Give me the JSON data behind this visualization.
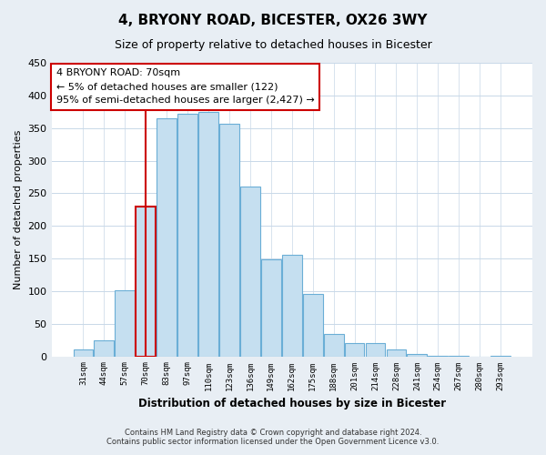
{
  "title": "4, BRYONY ROAD, BICESTER, OX26 3WY",
  "subtitle": "Size of property relative to detached houses in Bicester",
  "xlabel": "Distribution of detached houses by size in Bicester",
  "ylabel": "Number of detached properties",
  "footer_lines": [
    "Contains HM Land Registry data © Crown copyright and database right 2024.",
    "Contains public sector information licensed under the Open Government Licence v3.0."
  ],
  "bar_labels": [
    "31sqm",
    "44sqm",
    "57sqm",
    "70sqm",
    "83sqm",
    "97sqm",
    "110sqm",
    "123sqm",
    "136sqm",
    "149sqm",
    "162sqm",
    "175sqm",
    "188sqm",
    "201sqm",
    "214sqm",
    "228sqm",
    "241sqm",
    "254sqm",
    "267sqm",
    "280sqm",
    "293sqm"
  ],
  "bar_values": [
    10,
    25,
    101,
    230,
    365,
    372,
    374,
    357,
    260,
    148,
    155,
    96,
    34,
    21,
    21,
    11,
    3,
    1,
    1,
    0,
    1
  ],
  "bar_color": "#c5dff0",
  "bar_edge_color": "#6aaed6",
  "highlight_index": 3,
  "highlight_edge_color": "#cc0000",
  "vline_color": "#cc0000",
  "annotation_box_text": "4 BRYONY ROAD: 70sqm\n← 5% of detached houses are smaller (122)\n95% of semi-detached houses are larger (2,427) →",
  "annotation_box_edge_color": "#cc0000",
  "annotation_box_facecolor": "#ffffff",
  "ylim": [
    0,
    450
  ],
  "yticks": [
    0,
    50,
    100,
    150,
    200,
    250,
    300,
    350,
    400,
    450
  ],
  "background_color": "#e8eef4",
  "plot_background_color": "#ffffff",
  "grid_color": "#c8d8e8"
}
